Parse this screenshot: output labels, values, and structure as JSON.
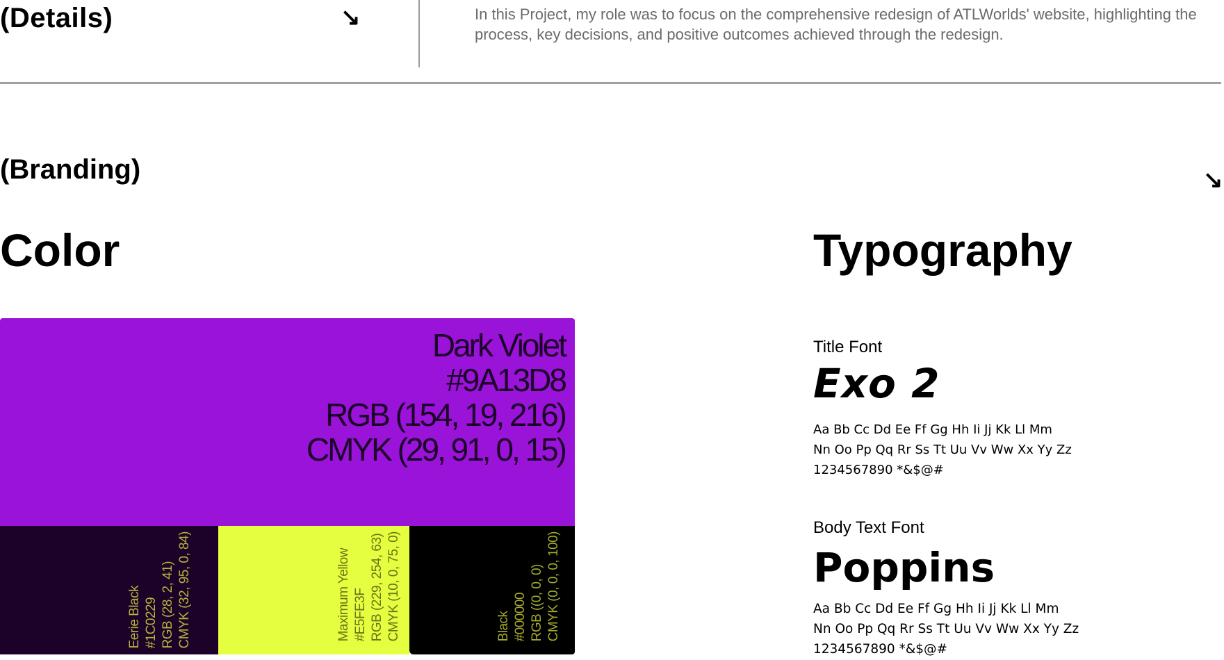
{
  "details": {
    "title": "(Details)",
    "arrow_icon": "arrow-down-right-icon",
    "description": "In this Project, my role was to focus on the comprehensive redesign of ATLWorlds' website, highlighting the process, key decisions, and positive outcomes achieved through the redesign."
  },
  "branding": {
    "title": "(Branding)",
    "arrow_icon": "arrow-down-right-icon"
  },
  "color": {
    "title": "Color",
    "primary": {
      "name": "Dark Violet",
      "hex": "#9A13D8",
      "rgb": "RGB (154, 19, 216)",
      "cmyk": "CMYK (29, 91, 0, 15)",
      "swatch_color": "#9A13D8"
    },
    "secondary": [
      {
        "name": "Eerie Black",
        "hex": "#1C0229",
        "rgb": "RGB (28, 2, 41)",
        "cmyk": "CMYK (32, 95, 0, 84)",
        "swatch_color": "#1C0229"
      },
      {
        "name": "Maximum Yellow",
        "hex": "#E5FE3F",
        "rgb": "RGB (229, 254, 63)",
        "cmyk": "CMYK (10, 0, 75, 0)",
        "swatch_color": "#E5FE3F"
      },
      {
        "name": "Black",
        "hex": "#000000",
        "rgb": "RGB ((0, 0, 0)",
        "cmyk": "CMYK (0, 0, 0, 100)",
        "swatch_color": "#000000"
      }
    ]
  },
  "typography": {
    "title": "Typography",
    "title_font": {
      "label": "Title Font",
      "name": "Exo 2",
      "specimen": [
        "Aa Bb Cc Dd Ee Ff Gg Hh Ii Jj Kk Ll Mm",
        "Nn Oo Pp Qq Rr Ss Tt Uu Vv Ww Xx Yy Zz",
        "1234567890 *&$@#"
      ]
    },
    "body_font": {
      "label": "Body Text Font",
      "name": "Poppins",
      "specimen": [
        "Aa Bb Cc Dd Ee Ff Gg Hh Ii Jj Kk Ll Mm",
        "Nn Oo Pp Qq Rr Ss Tt Uu Vv Ww Xx Yy Zz",
        "1234567890 *&$@#"
      ]
    }
  }
}
